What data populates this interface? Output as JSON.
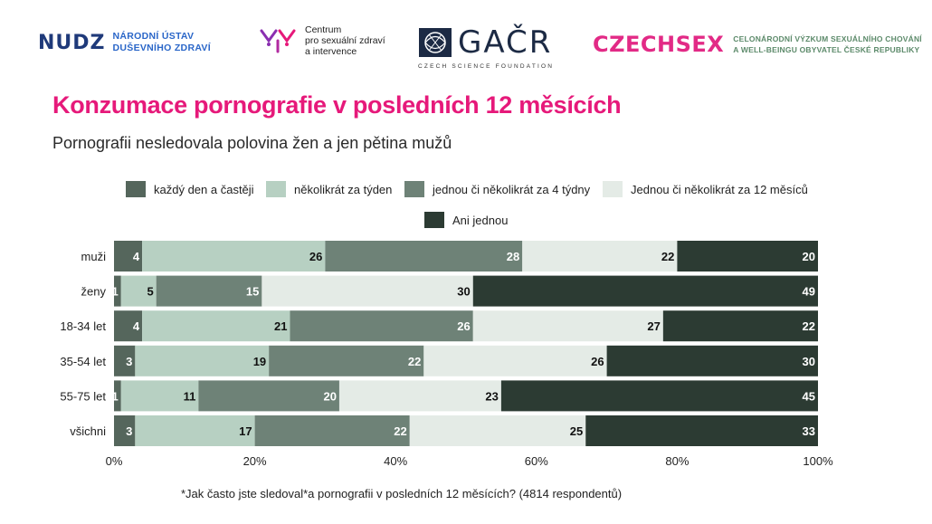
{
  "logos": {
    "nudz": {
      "mark": "NUDZ",
      "line1": "NÁRODNÍ ÚSTAV",
      "line2": "DUŠEVNÍHO ZDRAVÍ"
    },
    "centrum": {
      "line1": "Centrum",
      "line2": "pro sexuální zdraví",
      "line3": "a intervence"
    },
    "gacr": {
      "word": "GAČR",
      "sub": "CZECH SCIENCE FOUNDATION"
    },
    "czechsex": {
      "word": "CZECHSEX",
      "line1": "CELONÁRODNÍ VÝZKUM SEXUÁLNÍHO CHOVÁNÍ",
      "line2": "A WELL-BEINGU OBYVATEL ČESKÉ REPUBLIKY"
    }
  },
  "title": "Konzumace pornografie v posledních 12 měsících",
  "subtitle": "Pornografii nesledovala polovina žen a jen pětina mužů",
  "footnote": "*Jak často jste sledoval*a pornografii v posledních 12 měsících? (4814 respondentů)",
  "colors": {
    "title": "#e6197a",
    "series": [
      "#55665c",
      "#b7d0c2",
      "#6e8277",
      "#e4ebe6",
      "#2c3b33"
    ],
    "label_dark": "#111111",
    "label_light": "#ffffff"
  },
  "chart_data": {
    "type": "bar",
    "orientation": "horizontal",
    "stacked": true,
    "categories": [
      "muži",
      "ženy",
      "18-34 let",
      "35-54 let",
      "55-75 let",
      "všichni"
    ],
    "series": [
      {
        "name": "každý den a častěji",
        "values": [
          4,
          1,
          4,
          3,
          1,
          3
        ]
      },
      {
        "name": "několikrát za týden",
        "values": [
          26,
          5,
          21,
          19,
          11,
          17
        ]
      },
      {
        "name": "jednou či několikrát za 4 týdny",
        "values": [
          28,
          15,
          26,
          22,
          20,
          22
        ]
      },
      {
        "name": "Jednou či několikrát za 12 měsíců",
        "values": [
          22,
          30,
          27,
          26,
          23,
          25
        ]
      },
      {
        "name": "Ani jednou",
        "values": [
          20,
          49,
          22,
          30,
          45,
          33
        ]
      }
    ],
    "xlim": [
      0,
      100
    ],
    "x_ticks": [
      "0%",
      "20%",
      "40%",
      "60%",
      "80%",
      "100%"
    ],
    "legend_position": "top",
    "grid": false
  }
}
